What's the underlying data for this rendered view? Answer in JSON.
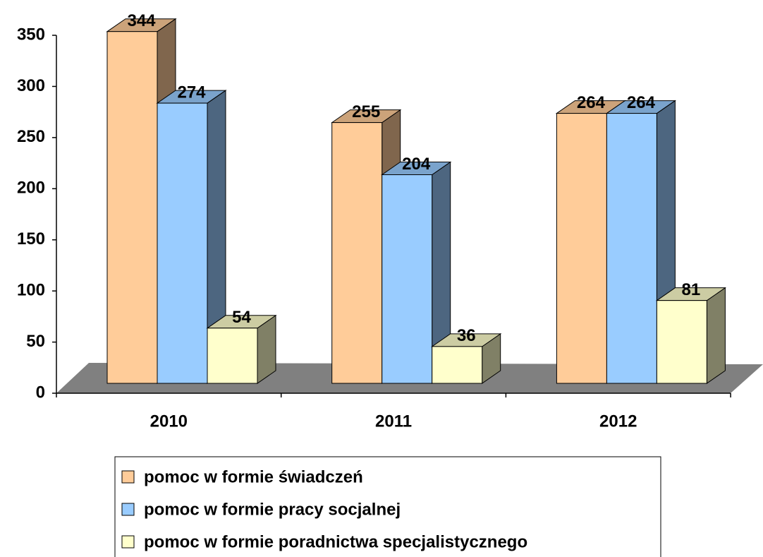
{
  "chart_data": {
    "type": "bar3d",
    "categories": [
      "2010",
      "2011",
      "2012"
    ],
    "series": [
      {
        "name": "pomoc w formie świadczeń",
        "color": "#ffcc99",
        "values": [
          344,
          255,
          264
        ]
      },
      {
        "name": "pomoc w formie pracy socjalnej",
        "color": "#99ccff",
        "values": [
          274,
          204,
          264
        ]
      },
      {
        "name": "pomoc w formie poradnictwa specjalistycznego",
        "color": "#ffffcc",
        "values": [
          54,
          36,
          81
        ]
      }
    ],
    "ylim": [
      0,
      350
    ],
    "yticks": [
      0,
      50,
      100,
      150,
      200,
      250,
      300,
      350
    ],
    "legend": "bottom"
  }
}
